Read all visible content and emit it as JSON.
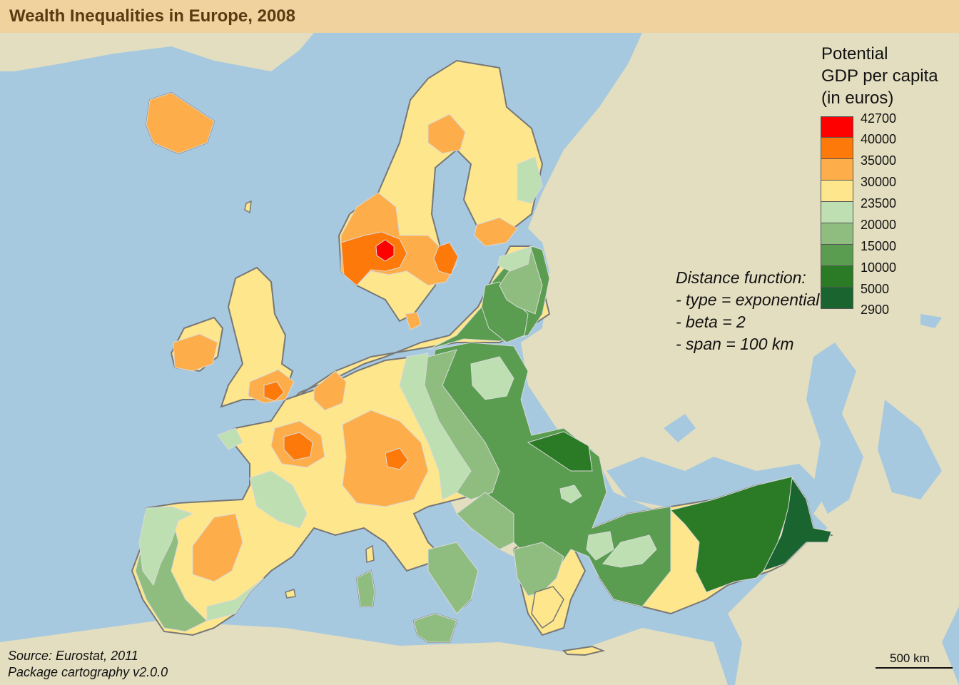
{
  "title": "Wealth Inequalities in Europe, 2008",
  "legend": {
    "title_lines": [
      "Potential",
      "GDP per capita",
      "(in euros)"
    ],
    "breaks": [
      "42700",
      "40000",
      "35000",
      "30000",
      "23500",
      "20000",
      "15000",
      "10000",
      "5000",
      "2900"
    ],
    "colors": [
      "#ff0000",
      "#fd7a0a",
      "#fdae4b",
      "#fde68c",
      "#bddfb2",
      "#8fbd7f",
      "#5a9c50",
      "#2b7a25",
      "#1a6430"
    ]
  },
  "distance_note": [
    "Distance function:",
    "- type = exponential",
    "- beta = 2",
    "- span = 100 km"
  ],
  "source_lines": [
    "Source: Eurostat, 2011",
    "Package cartography v2.0.0"
  ],
  "scale_bar": {
    "label": "500 km",
    "distance_km": 500
  },
  "map_colors": {
    "sea": "#a7c9df",
    "land_outside": "#e3dec0",
    "title_band": "#efd29e"
  }
}
